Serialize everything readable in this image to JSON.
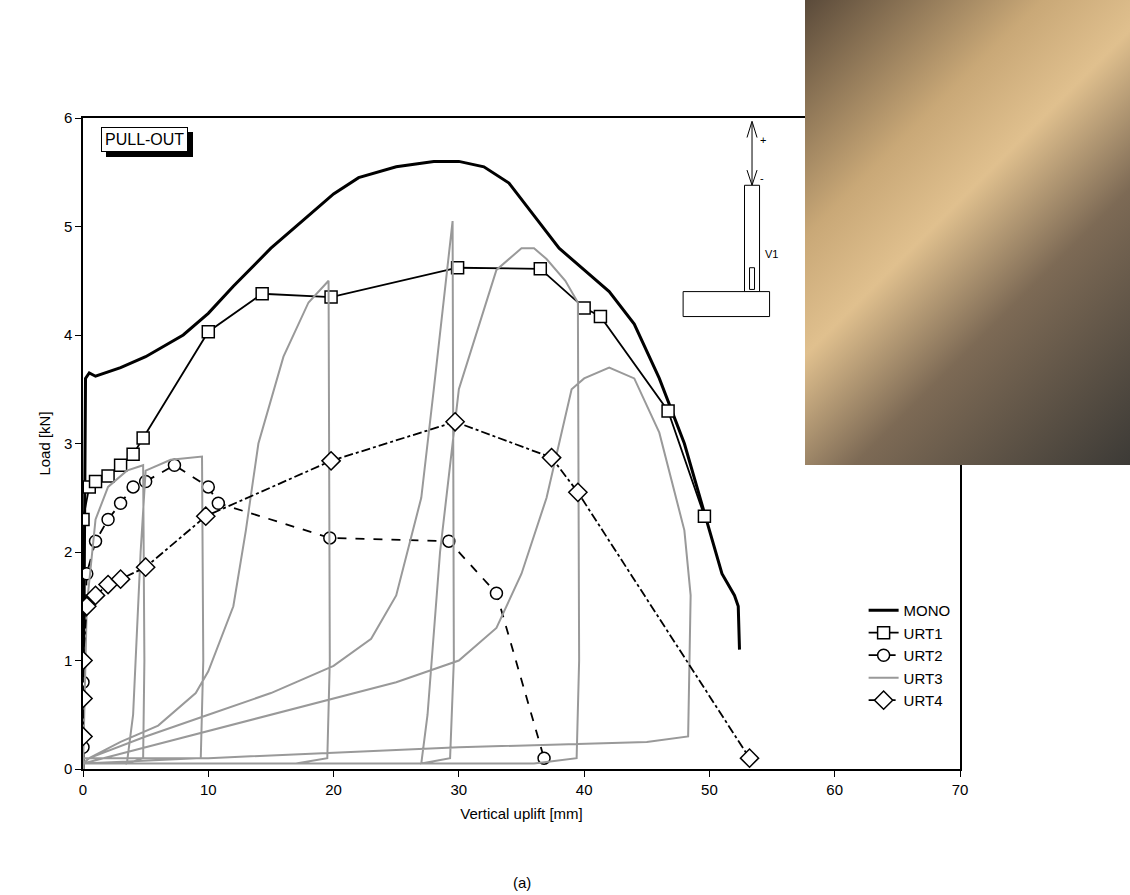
{
  "chart_data": {
    "type": "line",
    "title": "PULL-OUT",
    "x_label": "Vertical uplift [mm]",
    "y_label": "Load [kN]",
    "caption": "(a)",
    "schematic_labels": {
      "plus": "+",
      "minus": "-",
      "sensor": "V1"
    },
    "xlim": [
      0,
      70
    ],
    "xticks": [
      0,
      10,
      20,
      30,
      40,
      50,
      60,
      70
    ],
    "ylim": [
      0,
      6
    ],
    "yticks": [
      0,
      1,
      2,
      3,
      4,
      5,
      6
    ],
    "grid": false,
    "legend": "bottom right",
    "series": [
      {
        "name": "MONO",
        "color": "#000000",
        "line_style": "solid",
        "marker": "none",
        "x": [
          0,
          0.2,
          0.5,
          1,
          3,
          5,
          8,
          10,
          12,
          15,
          18,
          20,
          22,
          25,
          28,
          30,
          32,
          34,
          36,
          38,
          40,
          42,
          44,
          46,
          48,
          49,
          50,
          51,
          52,
          52.3,
          52.4
        ],
        "values": [
          0,
          3.6,
          3.65,
          3.62,
          3.7,
          3.8,
          4.0,
          4.2,
          4.45,
          4.8,
          5.1,
          5.3,
          5.45,
          5.55,
          5.6,
          5.6,
          5.55,
          5.4,
          5.1,
          4.8,
          4.6,
          4.4,
          4.1,
          3.6,
          3.0,
          2.6,
          2.2,
          1.8,
          1.6,
          1.5,
          1.1
        ]
      },
      {
        "name": "URT1",
        "color": "#000000",
        "line_style": "solid",
        "marker": "square",
        "x": [
          0,
          0.5,
          1,
          2,
          3,
          4,
          4.8,
          10,
          14.3,
          19.8,
          29.9,
          36.5,
          40,
          41.3,
          46.7,
          49.6
        ],
        "values": [
          2.3,
          2.6,
          2.65,
          2.7,
          2.8,
          2.9,
          3.05,
          4.03,
          4.38,
          4.35,
          4.62,
          4.61,
          4.25,
          4.17,
          3.3,
          2.33
        ]
      },
      {
        "name": "URT2",
        "color": "#000000",
        "line_style": "dash",
        "marker": "circle",
        "x": [
          0,
          0,
          0.3,
          1,
          2,
          3,
          4,
          5,
          7.3,
          10,
          10.8,
          19.7,
          29.2,
          33,
          36.8
        ],
        "values": [
          0.2,
          0.8,
          1.8,
          2.1,
          2.3,
          2.45,
          2.6,
          2.65,
          2.8,
          2.6,
          2.45,
          2.13,
          2.1,
          1.62,
          0.1
        ]
      },
      {
        "name": "URT3",
        "color": "#999999",
        "line_style": "solid",
        "marker": "none",
        "x": [
          0,
          0.3,
          1,
          2,
          3.5,
          4.8,
          4.9,
          4.8,
          3.5,
          4,
          4.6,
          5,
          7,
          9.5,
          9.6,
          9.4,
          0,
          0.5,
          3,
          6,
          9,
          10,
          12,
          13,
          14,
          16,
          18,
          19.6,
          19.7,
          19.5,
          17,
          0,
          0.5,
          5,
          10,
          15,
          20,
          23,
          25,
          27,
          28,
          29.5,
          29.6,
          29.3,
          27,
          27.5,
          28.5,
          30,
          33,
          35,
          36,
          37,
          38.5,
          39.5,
          39.6,
          39.4,
          36,
          0,
          5,
          15,
          25,
          30,
          33,
          35,
          37,
          38,
          39,
          40,
          42,
          44,
          46,
          48,
          48.5,
          48.3,
          45,
          30,
          10,
          0
        ],
        "values": [
          0,
          1.5,
          2.3,
          2.6,
          2.75,
          2.8,
          1,
          0.1,
          0.05,
          0.5,
          2,
          2.75,
          2.85,
          2.88,
          1,
          0.1,
          0.05,
          0.1,
          0.25,
          0.4,
          0.7,
          0.9,
          1.5,
          2.2,
          3,
          3.8,
          4.3,
          4.5,
          1,
          0.1,
          0.05,
          0.05,
          0.1,
          0.3,
          0.5,
          0.7,
          0.95,
          1.2,
          1.6,
          2.5,
          3.5,
          5.05,
          1,
          0.1,
          0.05,
          0.5,
          2,
          3.5,
          4.6,
          4.8,
          4.8,
          4.7,
          4.5,
          4.3,
          1,
          0.1,
          0.05,
          0.05,
          0.2,
          0.5,
          0.8,
          1,
          1.3,
          1.8,
          2.5,
          3,
          3.5,
          3.6,
          3.7,
          3.6,
          3.1,
          2.2,
          1.6,
          0.3,
          0.25,
          0.2,
          0.1,
          0.1
        ]
      },
      {
        "name": "URT4",
        "color": "#000000",
        "line_style": "dashdot",
        "marker": "diamond",
        "x": [
          0,
          0,
          0,
          0.3,
          1,
          2,
          3,
          5,
          9.8,
          19.8,
          29.7,
          37.4,
          39.5,
          53.2
        ],
        "values": [
          0.3,
          0.65,
          1,
          1.5,
          1.6,
          1.7,
          1.75,
          1.86,
          2.33,
          2.84,
          3.2,
          2.87,
          2.55,
          0.1
        ]
      }
    ]
  }
}
